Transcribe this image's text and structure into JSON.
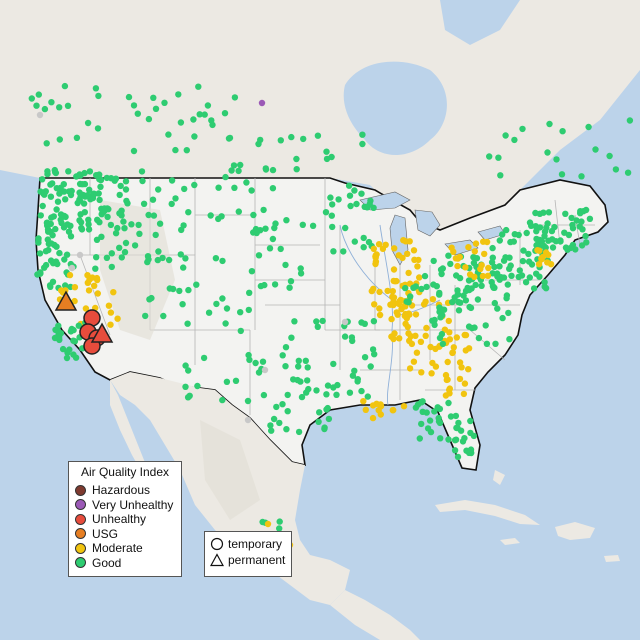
{
  "map": {
    "colors": {
      "water": "#bcd3ea",
      "land_other": "#ece9e3",
      "land_us": "#f3f3f1",
      "state_line": "#b5b5b5",
      "country_border": "#111111"
    }
  },
  "legend": {
    "title": "Air Quality Index",
    "items": [
      {
        "label": "Hazardous",
        "color": "#7e3a2f"
      },
      {
        "label": "Very Unhealthy",
        "color": "#9b59b6"
      },
      {
        "label": "Unhealthy",
        "color": "#e74c3c"
      },
      {
        "label": "USG",
        "color": "#e67e22"
      },
      {
        "label": "Moderate",
        "color": "#f1c40f"
      },
      {
        "label": "Good",
        "color": "#2ecc71"
      }
    ]
  },
  "type_legend": {
    "items": [
      {
        "label": "temporary",
        "shape": "circle-icon"
      },
      {
        "label": "permanent",
        "shape": "triangle-icon"
      }
    ]
  }
}
